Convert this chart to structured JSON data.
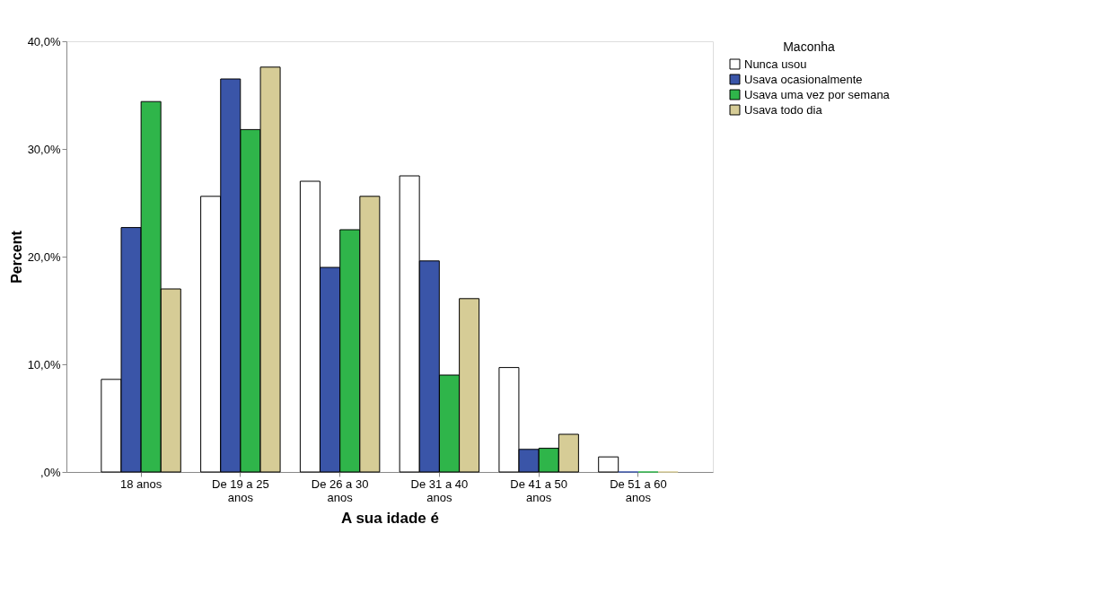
{
  "chart_data": {
    "type": "bar",
    "xlabel": "A sua idade é",
    "ylabel": "Percent",
    "legend_title": "Maconha",
    "legend": "right",
    "grid": false,
    "categories": [
      "18 anos",
      "De 19 a 25 anos",
      "De 26 a 30 anos",
      "De 31 a 40 anos",
      "De 41 a 50 anos",
      "De 51 a 60 anos"
    ],
    "series": [
      {
        "name": "Nunca usou",
        "color": "#ffffff",
        "values": [
          8.6,
          25.6,
          27.0,
          27.5,
          9.7,
          1.4
        ]
      },
      {
        "name": "Usava ocasionalmente",
        "color": "#3a55a8",
        "values": [
          22.7,
          36.5,
          19.0,
          19.6,
          2.1,
          0
        ]
      },
      {
        "name": "Usava uma vez por semana",
        "color": "#2fb54a",
        "values": [
          34.4,
          31.8,
          22.5,
          9.0,
          2.2,
          0
        ]
      },
      {
        "name": "Usava todo dia",
        "color": "#d6cc96",
        "values": [
          17.0,
          37.6,
          25.6,
          16.1,
          3.5,
          0
        ]
      }
    ],
    "ylim": [
      0,
      40
    ],
    "yticks": [
      {
        "value": 0,
        "label": ",0%"
      },
      {
        "value": 10,
        "label": "10,0%"
      },
      {
        "value": 20,
        "label": "20,0%"
      },
      {
        "value": 30,
        "label": "30,0%"
      },
      {
        "value": 40,
        "label": "40,0%"
      }
    ]
  }
}
